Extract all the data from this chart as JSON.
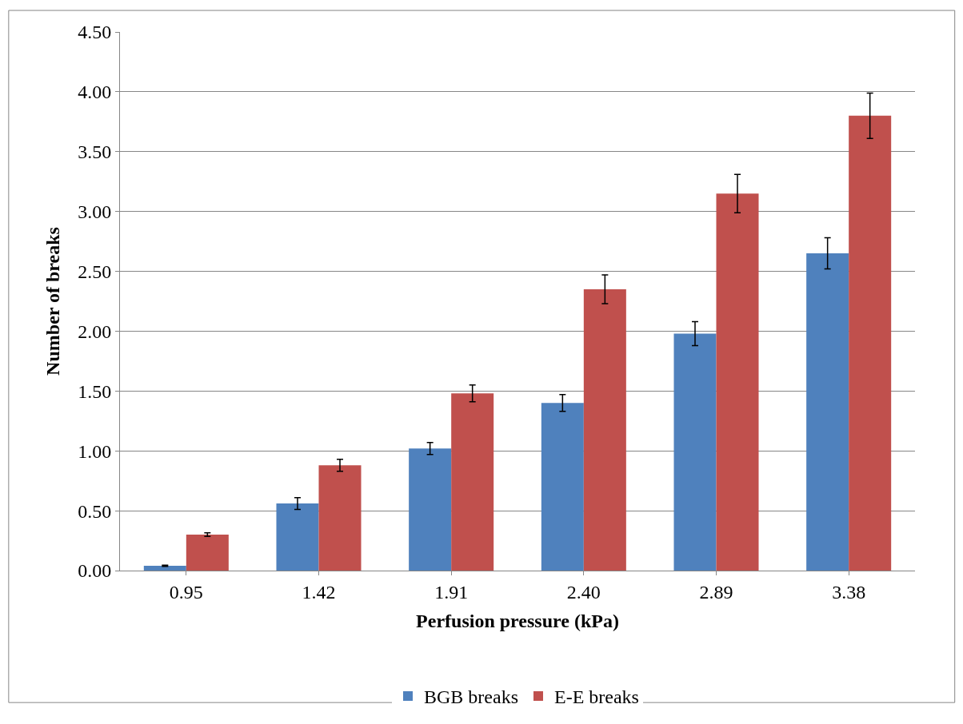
{
  "chart_data": {
    "type": "bar",
    "xlabel": "Perfusion pressure (kPa)",
    "ylabel": "Number of breaks",
    "categories": [
      "0.95",
      "1.42",
      "1.91",
      "2.40",
      "2.89",
      "3.38"
    ],
    "series": [
      {
        "name": "BGB breaks",
        "color": "#4f81bd",
        "values": [
          0.04,
          0.56,
          1.02,
          1.4,
          1.98,
          2.65
        ],
        "errors": [
          0.005,
          0.05,
          0.05,
          0.07,
          0.1,
          0.13
        ]
      },
      {
        "name": "E-E breaks",
        "color": "#c0504d",
        "values": [
          0.3,
          0.88,
          1.48,
          2.35,
          3.15,
          3.8
        ],
        "errors": [
          0.015,
          0.05,
          0.07,
          0.12,
          0.16,
          0.19
        ]
      }
    ],
    "ylim": [
      0,
      4.5
    ],
    "yticks": [
      {
        "value": 0,
        "label": "0.00"
      },
      {
        "value": 0.5,
        "label": "0.50"
      },
      {
        "value": 1,
        "label": "1.00"
      },
      {
        "value": 1.5,
        "label": "1.50"
      },
      {
        "value": 2,
        "label": "2.00"
      },
      {
        "value": 2.5,
        "label": "2.50"
      },
      {
        "value": 3,
        "label": "3.00"
      },
      {
        "value": 3.5,
        "label": "3.50"
      },
      {
        "value": 4,
        "label": "4.00"
      },
      {
        "value": 4.5,
        "label": "4.50"
      }
    ],
    "grid": "y",
    "legend": "bottom"
  }
}
